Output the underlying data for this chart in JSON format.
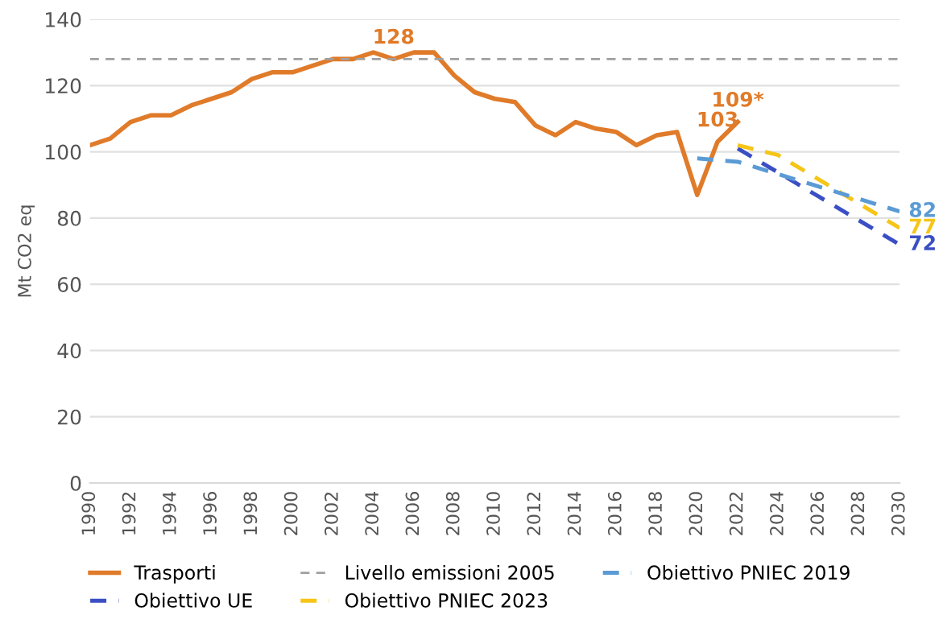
{
  "chart_data": {
    "type": "line",
    "ylabel": "Mt CO2 eq",
    "xlim": [
      1990,
      2030
    ],
    "xticks": [
      1990,
      1992,
      1994,
      1996,
      1998,
      2000,
      2002,
      2004,
      2006,
      2008,
      2010,
      2012,
      2014,
      2016,
      2018,
      2020,
      2022,
      2024,
      2026,
      2028,
      2030
    ],
    "ylim": [
      0,
      140
    ],
    "yticks": [
      0,
      20,
      40,
      60,
      80,
      100,
      120,
      140
    ],
    "grid": "y",
    "legend": "bottom",
    "marker": "none",
    "series": [
      {
        "name": "Trasporti",
        "color": "#e07b2a",
        "line_style": "solid",
        "x": [
          1990,
          1991,
          1992,
          1993,
          1994,
          1995,
          1996,
          1997,
          1998,
          1999,
          2000,
          2001,
          2002,
          2003,
          2004,
          2005,
          2006,
          2007,
          2008,
          2009,
          2010,
          2011,
          2012,
          2013,
          2014,
          2015,
          2016,
          2017,
          2018,
          2019,
          2020,
          2021,
          2022
        ],
        "values": [
          102,
          104,
          109,
          111,
          111,
          114,
          116,
          118,
          122,
          124,
          124,
          126,
          128,
          128,
          130,
          128,
          130,
          130,
          123,
          118,
          116,
          115,
          108,
          105,
          109,
          107,
          106,
          102,
          105,
          106,
          87,
          103,
          109
        ],
        "value_labels": [
          null,
          null,
          null,
          null,
          null,
          null,
          null,
          null,
          null,
          null,
          null,
          null,
          null,
          null,
          null,
          "128",
          null,
          null,
          null,
          null,
          null,
          null,
          null,
          null,
          null,
          null,
          null,
          null,
          null,
          null,
          null,
          "103",
          "109*"
        ]
      },
      {
        "name": "Obiettivo UE",
        "color": "#3b4fc4",
        "line_style": "dashed",
        "x": [
          2022,
          2030
        ],
        "values": [
          101,
          72
        ],
        "value_labels": [
          null,
          "72"
        ]
      },
      {
        "name": "Obiettivo PNIEC 2023",
        "color": "#f5c518",
        "line_style": "dashed",
        "x": [
          2022,
          2024,
          2030
        ],
        "values": [
          102,
          99,
          77
        ],
        "value_labels": [
          null,
          null,
          "77"
        ]
      },
      {
        "name": "Obiettivo PNIEC 2019",
        "color": "#5b9bd5",
        "line_style": "dashed",
        "x": [
          2020,
          2022,
          2030
        ],
        "values": [
          98,
          97,
          82
        ],
        "value_labels": [
          null,
          null,
          "82"
        ]
      }
    ],
    "ref_lines": [
      {
        "axis": "y",
        "value": 128,
        "label": "Livello emissioni 2005",
        "color": "#a0a0a0",
        "line_style": "dashed"
      }
    ]
  }
}
